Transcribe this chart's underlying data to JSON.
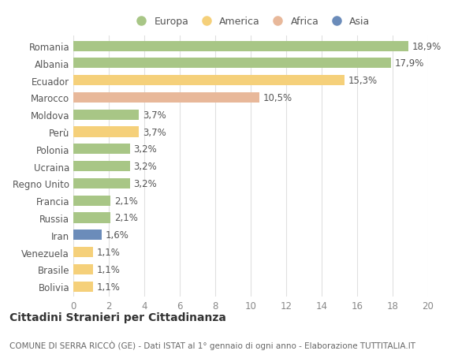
{
  "countries": [
    "Romania",
    "Albania",
    "Ecuador",
    "Marocco",
    "Moldova",
    "Perù",
    "Polonia",
    "Ucraina",
    "Regno Unito",
    "Francia",
    "Russia",
    "Iran",
    "Venezuela",
    "Brasile",
    "Bolivia"
  ],
  "values": [
    18.9,
    17.9,
    15.3,
    10.5,
    3.7,
    3.7,
    3.2,
    3.2,
    3.2,
    2.1,
    2.1,
    1.6,
    1.1,
    1.1,
    1.1
  ],
  "labels": [
    "18,9%",
    "17,9%",
    "15,3%",
    "10,5%",
    "3,7%",
    "3,7%",
    "3,2%",
    "3,2%",
    "3,2%",
    "2,1%",
    "2,1%",
    "1,6%",
    "1,1%",
    "1,1%",
    "1,1%"
  ],
  "continents": [
    "Europa",
    "Europa",
    "America",
    "Africa",
    "Europa",
    "America",
    "Europa",
    "Europa",
    "Europa",
    "Europa",
    "Europa",
    "Asia",
    "America",
    "America",
    "America"
  ],
  "continent_colors": {
    "Europa": "#a8c686",
    "America": "#f5d07a",
    "Africa": "#e8b89a",
    "Asia": "#6b8cba"
  },
  "legend_order": [
    "Europa",
    "America",
    "Africa",
    "Asia"
  ],
  "xlim": [
    0,
    20
  ],
  "xticks": [
    0,
    2,
    4,
    6,
    8,
    10,
    12,
    14,
    16,
    18,
    20
  ],
  "title": "Cittadini Stranieri per Cittadinanza",
  "subtitle": "COMUNE DI SERRA RICCÒ (GE) - Dati ISTAT al 1° gennaio di ogni anno - Elaborazione TUTTITALIA.IT",
  "background_color": "#ffffff",
  "grid_color": "#e0e0e0",
  "bar_height": 0.6,
  "label_fontsize": 8.5,
  "ytick_fontsize": 8.5,
  "xtick_fontsize": 8.5,
  "title_fontsize": 10,
  "subtitle_fontsize": 7.5
}
